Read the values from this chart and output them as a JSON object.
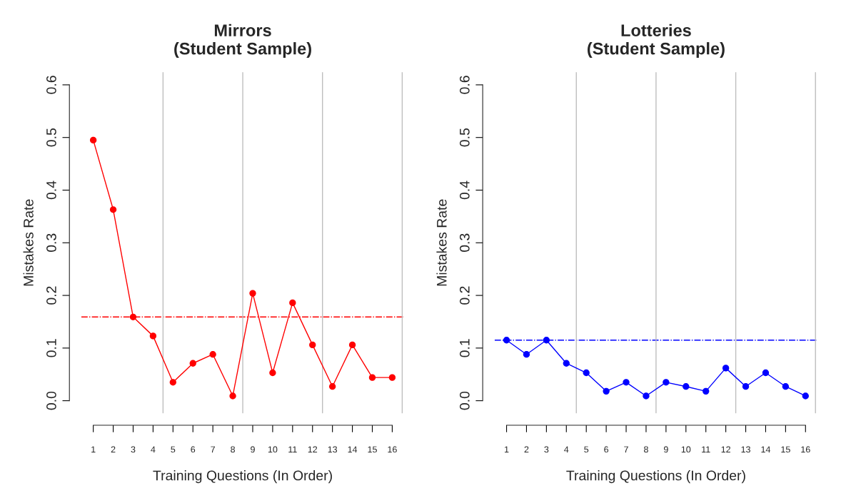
{
  "chart_data": [
    {
      "type": "line",
      "title": "Mirrors\n(Student Sample)",
      "xlabel": "Training Questions (In Order)",
      "ylabel": "Mistakes Rate",
      "x": [
        1,
        2,
        3,
        4,
        5,
        6,
        7,
        8,
        9,
        10,
        11,
        12,
        13,
        14,
        15,
        16
      ],
      "series": [
        {
          "color": "#ff0000",
          "values": [
            0.495,
            0.363,
            0.159,
            0.123,
            0.035,
            0.071,
            0.088,
            0.009,
            0.204,
            0.053,
            0.186,
            0.106,
            0.027,
            0.106,
            0.044,
            0.044
          ]
        }
      ],
      "marker": "circle",
      "line_style": "solid",
      "grid": false,
      "legend": false,
      "xlim": [
        0.4,
        16.6
      ],
      "xticks": [
        1,
        2,
        3,
        4,
        5,
        6,
        7,
        8,
        9,
        10,
        11,
        12,
        13,
        14,
        15,
        16
      ],
      "ylim": [
        -0.024,
        0.624
      ],
      "yticks": [
        {
          "value": 0,
          "label": "0.0"
        },
        0.1,
        0.2,
        0.3,
        0.4,
        0.5,
        0.6
      ],
      "ref_lines": [
        {
          "axis": "y",
          "value": 0.159,
          "color": "#ff0000",
          "line_style": "dashdot"
        },
        {
          "axis": "x",
          "value": 4.5,
          "color": "#bebebe",
          "line_style": "solid"
        },
        {
          "axis": "x",
          "value": 8.5,
          "color": "#bebebe",
          "line_style": "solid"
        },
        {
          "axis": "x",
          "value": 12.5,
          "color": "#bebebe",
          "line_style": "solid"
        },
        {
          "axis": "x",
          "value": 16.5,
          "color": "#bebebe",
          "line_style": "solid"
        }
      ]
    },
    {
      "type": "line",
      "title": "Lotteries\n(Student Sample)",
      "xlabel": "Training Questions (In Order)",
      "ylabel": "Mistakes Rate",
      "x": [
        1,
        2,
        3,
        4,
        5,
        6,
        7,
        8,
        9,
        10,
        11,
        12,
        13,
        14,
        15,
        16
      ],
      "series": [
        {
          "color": "#0000ff",
          "values": [
            0.115,
            0.088,
            0.115,
            0.071,
            0.053,
            0.018,
            0.035,
            0.009,
            0.035,
            0.027,
            0.018,
            0.062,
            0.027,
            0.053,
            0.027,
            0.009
          ]
        }
      ],
      "marker": "circle",
      "line_style": "solid",
      "grid": false,
      "legend": false,
      "xlim": [
        0.4,
        16.6
      ],
      "xticks": [
        1,
        2,
        3,
        4,
        5,
        6,
        7,
        8,
        9,
        10,
        11,
        12,
        13,
        14,
        15,
        16
      ],
      "ylim": [
        -0.024,
        0.624
      ],
      "yticks": [
        {
          "value": 0,
          "label": "0.0"
        },
        0.1,
        0.2,
        0.3,
        0.4,
        0.5,
        0.6
      ],
      "ref_lines": [
        {
          "axis": "y",
          "value": 0.115,
          "color": "#0000ff",
          "line_style": "dashdot"
        },
        {
          "axis": "x",
          "value": 4.5,
          "color": "#bebebe",
          "line_style": "solid"
        },
        {
          "axis": "x",
          "value": 8.5,
          "color": "#bebebe",
          "line_style": "solid"
        },
        {
          "axis": "x",
          "value": 12.5,
          "color": "#bebebe",
          "line_style": "solid"
        },
        {
          "axis": "x",
          "value": 16.5,
          "color": "#bebebe",
          "line_style": "solid"
        }
      ]
    }
  ]
}
